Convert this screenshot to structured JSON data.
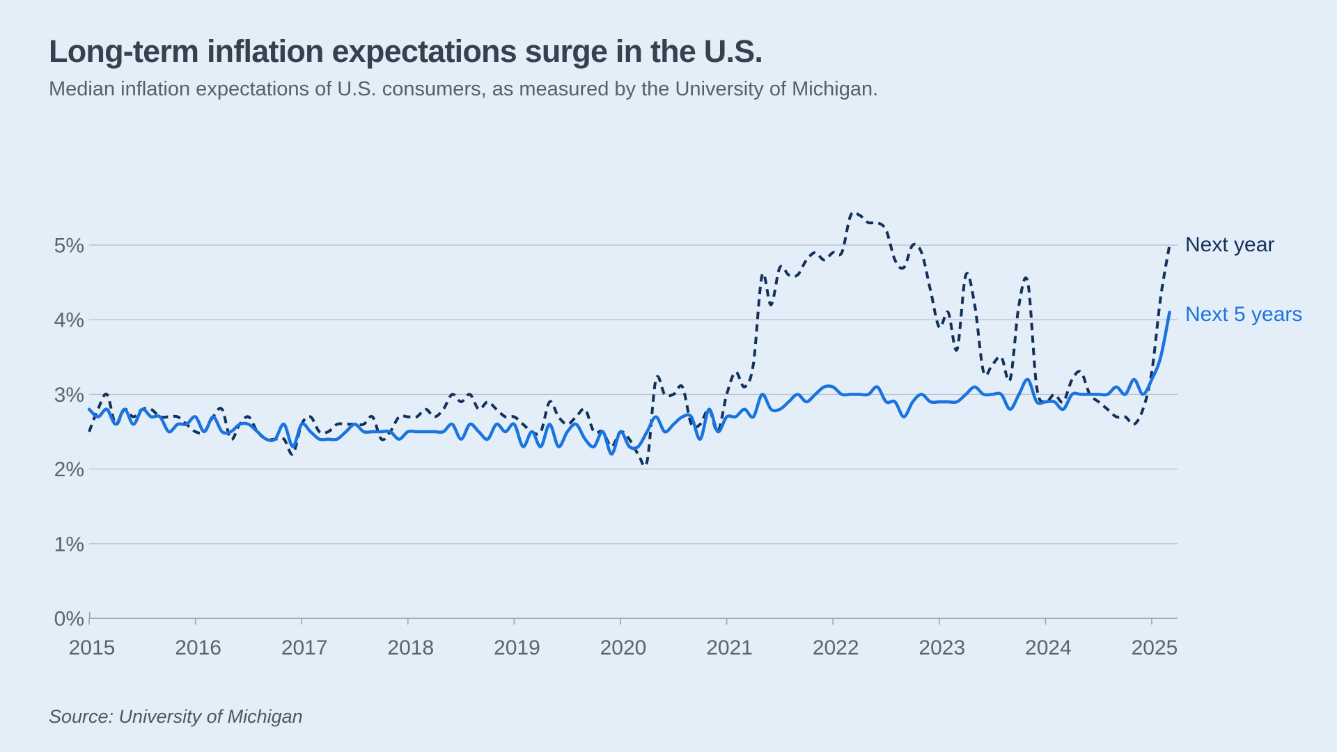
{
  "header": {
    "title": "Long-term inflation expectations surge in the U.S.",
    "subtitle": "Median inflation expectations of U.S. consumers, as measured by the University of Michigan."
  },
  "footer": {
    "source": "Source: University of Michigan"
  },
  "theme": {
    "background": "#e4eef9",
    "title_color": "#35424e",
    "subtitle_color": "#55606b",
    "axis_text_color": "#5a646e",
    "grid_color": "#bac3cc",
    "axis_line_color": "#9aa4ae",
    "source_color": "#4d5861",
    "navy": "#12315a",
    "blue": "#1b74dd"
  },
  "chart_data": {
    "type": "line",
    "title": "Long-term inflation expectations surge in the U.S.",
    "subtitle": "Median inflation expectations of U.S. consumers, as measured by the University of Michigan.",
    "source": "Source: University of Michigan",
    "x_unit": "month",
    "x_range": {
      "start": "2015-01",
      "end": "2025-03"
    },
    "x_tick_labels": [
      "2015",
      "2016",
      "2017",
      "2018",
      "2019",
      "2020",
      "2021",
      "2022",
      "2023",
      "2024",
      "2025"
    ],
    "y_tick_labels": [
      "0%",
      "1%",
      "2%",
      "3%",
      "4%",
      "5%"
    ],
    "ylim": [
      0,
      5.5
    ],
    "grid": "horizontal",
    "legend_position": "line-end-labels-right",
    "series": [
      {
        "name": "Next year",
        "color": "#12315a",
        "line_style": "dashed",
        "values": [
          2.5,
          2.8,
          3.0,
          2.6,
          2.8,
          2.7,
          2.8,
          2.8,
          2.7,
          2.7,
          2.7,
          2.6,
          2.5,
          2.5,
          2.7,
          2.8,
          2.4,
          2.6,
          2.7,
          2.5,
          2.4,
          2.4,
          2.4,
          2.2,
          2.6,
          2.7,
          2.5,
          2.5,
          2.6,
          2.6,
          2.6,
          2.6,
          2.7,
          2.4,
          2.5,
          2.7,
          2.7,
          2.7,
          2.8,
          2.7,
          2.8,
          3.0,
          2.9,
          3.0,
          2.8,
          2.9,
          2.8,
          2.7,
          2.7,
          2.6,
          2.5,
          2.5,
          2.9,
          2.7,
          2.6,
          2.7,
          2.8,
          2.5,
          2.5,
          2.3,
          2.5,
          2.4,
          2.2,
          2.1,
          3.2,
          3.0,
          3.0,
          3.1,
          2.6,
          2.6,
          2.8,
          2.5,
          3.0,
          3.3,
          3.1,
          3.4,
          4.6,
          4.2,
          4.7,
          4.6,
          4.6,
          4.8,
          4.9,
          4.8,
          4.9,
          4.9,
          5.4,
          5.4,
          5.3,
          5.3,
          5.2,
          4.8,
          4.7,
          5.0,
          4.9,
          4.4,
          3.9,
          4.1,
          3.6,
          4.6,
          4.2,
          3.3,
          3.4,
          3.5,
          3.2,
          4.2,
          4.5,
          3.1,
          2.9,
          3.0,
          2.9,
          3.2,
          3.3,
          3.0,
          2.9,
          2.8,
          2.7,
          2.7,
          2.6,
          2.8,
          3.3,
          4.3,
          5.0
        ]
      },
      {
        "name": "Next 5 years",
        "color": "#1b74dd",
        "line_style": "solid",
        "values": [
          2.8,
          2.7,
          2.8,
          2.6,
          2.8,
          2.6,
          2.8,
          2.7,
          2.7,
          2.5,
          2.6,
          2.6,
          2.7,
          2.5,
          2.7,
          2.5,
          2.5,
          2.6,
          2.6,
          2.5,
          2.4,
          2.4,
          2.6,
          2.3,
          2.6,
          2.5,
          2.4,
          2.4,
          2.4,
          2.5,
          2.6,
          2.5,
          2.5,
          2.5,
          2.5,
          2.4,
          2.5,
          2.5,
          2.5,
          2.5,
          2.5,
          2.6,
          2.4,
          2.6,
          2.5,
          2.4,
          2.6,
          2.5,
          2.6,
          2.3,
          2.5,
          2.3,
          2.6,
          2.3,
          2.5,
          2.6,
          2.4,
          2.3,
          2.5,
          2.2,
          2.5,
          2.3,
          2.3,
          2.5,
          2.7,
          2.5,
          2.6,
          2.7,
          2.7,
          2.4,
          2.8,
          2.5,
          2.7,
          2.7,
          2.8,
          2.7,
          3.0,
          2.8,
          2.8,
          2.9,
          3.0,
          2.9,
          3.0,
          3.1,
          3.1,
          3.0,
          3.0,
          3.0,
          3.0,
          3.1,
          2.9,
          2.9,
          2.7,
          2.9,
          3.0,
          2.9,
          2.9,
          2.9,
          2.9,
          3.0,
          3.1,
          3.0,
          3.0,
          3.0,
          2.8,
          3.0,
          3.2,
          2.9,
          2.9,
          2.9,
          2.8,
          3.0,
          3.0,
          3.0,
          3.0,
          3.0,
          3.1,
          3.0,
          3.2,
          3.0,
          3.2,
          3.5,
          4.1
        ]
      }
    ]
  }
}
